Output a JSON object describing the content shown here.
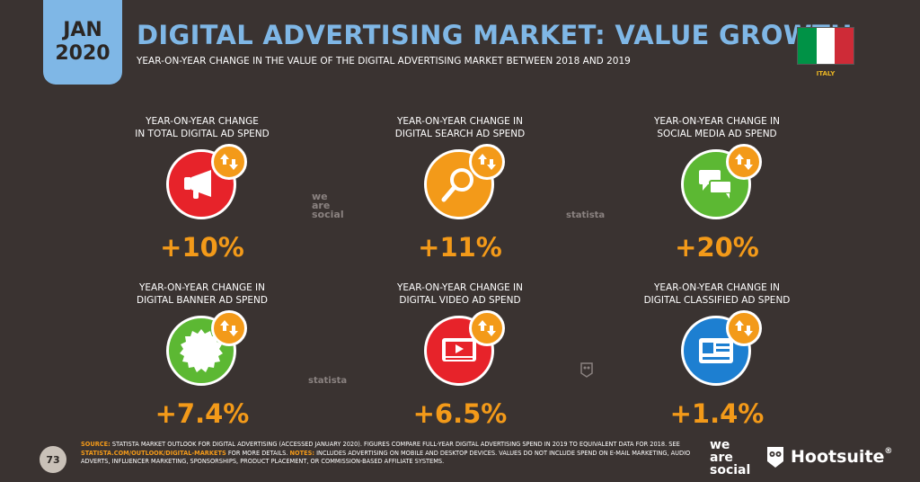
{
  "badge": {
    "month": "JAN",
    "year": "2020"
  },
  "header": {
    "title": "DIGITAL ADVERTISING MARKET: VALUE GROWTH",
    "subtitle": "YEAR-ON-YEAR CHANGE IN THE VALUE OF THE DIGITAL ADVERTISING MARKET BETWEEN 2018 AND 2019"
  },
  "flag": {
    "label": "ITALY",
    "colors": [
      "#009246",
      "#ffffff",
      "#ce2b37"
    ]
  },
  "stats": [
    {
      "label_1": "YEAR-ON-YEAR CHANGE",
      "label_2": "IN TOTAL DIGITAL AD SPEND",
      "value": "+10%",
      "icon": "megaphone-icon",
      "color": "#e7232a"
    },
    {
      "label_1": "YEAR-ON-YEAR CHANGE IN",
      "label_2": "DIGITAL SEARCH AD SPEND",
      "value": "+11%",
      "icon": "magnifier-icon",
      "color": "#f39a19"
    },
    {
      "label_1": "YEAR-ON-YEAR CHANGE IN",
      "label_2": "SOCIAL MEDIA AD SPEND",
      "value": "+20%",
      "icon": "chat-bubbles-icon",
      "color": "#5cb833"
    },
    {
      "label_1": "YEAR-ON-YEAR CHANGE IN",
      "label_2": "DIGITAL BANNER AD SPEND",
      "value": "+7.4%",
      "icon": "badge-seal-icon",
      "color": "#5cb833"
    },
    {
      "label_1": "YEAR-ON-YEAR CHANGE IN",
      "label_2": "DIGITAL VIDEO AD SPEND",
      "value": "+6.5%",
      "icon": "video-player-icon",
      "color": "#e7232a"
    },
    {
      "label_1": "YEAR-ON-YEAR CHANGE IN",
      "label_2": "DIGITAL CLASSIFIED AD SPEND",
      "value": "+1.4%",
      "icon": "id-card-icon",
      "color": "#1d7fd1"
    }
  ],
  "watermarks": {
    "we_1": "we",
    "we_2": "are",
    "we_3": "social",
    "statista": "statista"
  },
  "footer": {
    "page": "73",
    "source_label": "SOURCE:",
    "source_text": " STATISTA MARKET OUTLOOK FOR DIGITAL ADVERTISING (ACCESSED JANUARY 2020). FIGURES COMPARE FULL-YEAR DIGITAL ADVERTISING SPEND IN 2019 TO EQUIVALENT DATA FOR 2018. SEE ",
    "link": "STATISTA.COM/OUTLOOK/DIGITAL-MARKETS",
    "after_link": " FOR MORE DETAILS. ",
    "notes_label": "NOTES:",
    "notes_text": " INCLUDES ADVERTISING ON MOBILE AND DESKTOP DEVICES. VALUES DO NOT INCLUDE SPEND ON E-MAIL MARKETING, AUDIO ADVERTS, INFLUENCER MARKETING, SPONSORSHIPS, PRODUCT PLACEMENT, OR COMMISSION-BASED AFFILIATE SYSTEMS."
  },
  "brands": {
    "we_1": "we",
    "we_2": "are",
    "we_3": "social",
    "hootsuite": "Hootsuite",
    "reg": "®"
  }
}
